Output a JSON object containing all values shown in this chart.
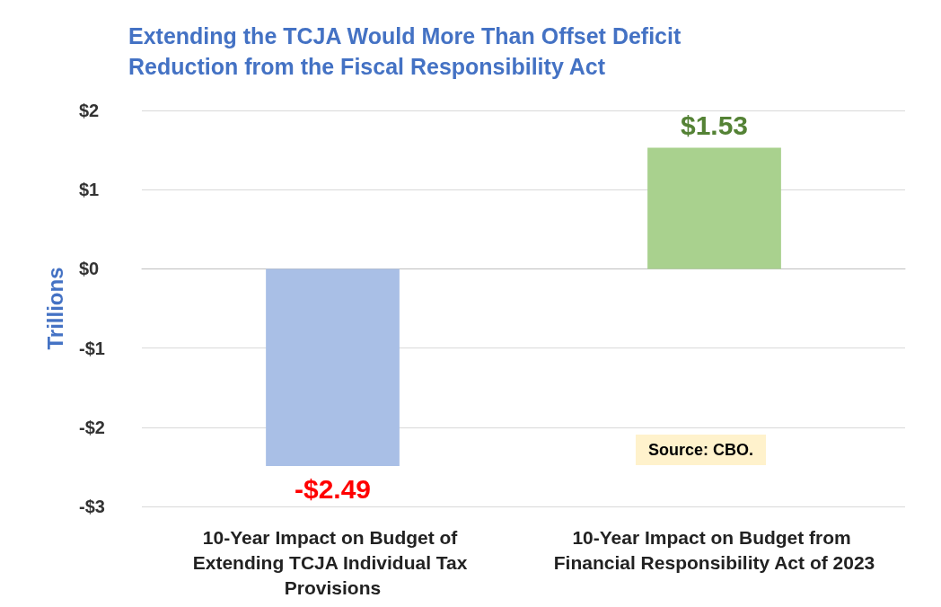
{
  "chart_data": {
    "type": "bar",
    "title": "Extending the TCJA Would More Than Offset Deficit Reduction from the Fiscal Responsibility Act",
    "ylabel": "Trillions",
    "categories": [
      "10-Year Impact on Budget of Extending TCJA Individual Tax Provisions",
      "10-Year Impact on Budget from Financial Responsibility Act of 2023"
    ],
    "values": [
      -2.49,
      1.53
    ],
    "colors": [
      "#a9bfe6",
      "#a9d18e"
    ],
    "value_labels": [
      "-$2.49",
      "$1.53"
    ],
    "ylim": [
      -3,
      2
    ],
    "yticks": [
      {
        "value": -3,
        "label": "-$3"
      },
      {
        "value": -2,
        "label": "-$2"
      },
      {
        "value": -1,
        "label": "-$1"
      },
      {
        "value": 0,
        "label": "$0"
      },
      {
        "value": 1,
        "label": "$1"
      },
      {
        "value": 2,
        "label": "$2"
      }
    ],
    "grid": "y",
    "annotations": [
      "Source: CBO."
    ]
  }
}
